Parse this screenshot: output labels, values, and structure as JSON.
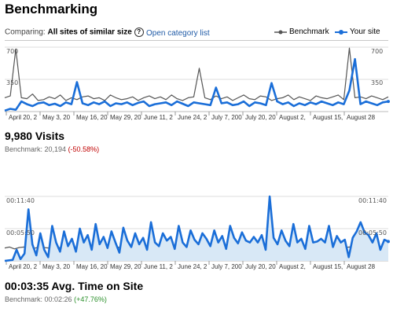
{
  "page": {
    "title": "Benchmarking",
    "comparing_label": "Comparing:",
    "comparing_value": "All sites of similar size",
    "help_icon": "?",
    "category_link": "Open category list",
    "legend": [
      {
        "label": "Benchmark",
        "color": "#555555"
      },
      {
        "label": "Your site",
        "color": "#1a6ed8"
      }
    ]
  },
  "visits": {
    "value_label": "9,980 Visits",
    "bench_label": "Benchmark: 20,194",
    "delta": "(-50.58%)"
  },
  "time": {
    "value_label": "00:03:35 Avg. Time on Site",
    "bench_label": "Benchmark: 00:02:26",
    "delta": "(+47.76%)"
  },
  "chart_data": [
    {
      "type": "line",
      "y_tick_labels": [
        "700",
        "350"
      ],
      "ylim": [
        0,
        700
      ],
      "x_tick_labels": [
        "April 20, 2",
        "May 3, 20",
        "May 16, 20",
        "May 29, 20",
        "June 11, 2",
        "June 24, 2",
        "July 7, 200",
        "July 20, 20",
        "August 2,",
        "August 15,",
        "August 28"
      ],
      "grid": true,
      "legend": "top-right",
      "series": [
        {
          "name": "Benchmark",
          "color": "#555555",
          "values": [
            150,
            170,
            680,
            150,
            140,
            190,
            120,
            130,
            160,
            140,
            180,
            120,
            150,
            130,
            160,
            170,
            140,
            150,
            120,
            180,
            150,
            130,
            140,
            160,
            120,
            150,
            170,
            140,
            160,
            130,
            180,
            140,
            120,
            150,
            160,
            470,
            150,
            130,
            170,
            140,
            160,
            120,
            150,
            180,
            140,
            130,
            170,
            160,
            120,
            140,
            150,
            180,
            130,
            160,
            140,
            120,
            170,
            150,
            140,
            160,
            180,
            130,
            690,
            150,
            160,
            140,
            170,
            150,
            130,
            160
          ]
        },
        {
          "name": "Your site",
          "color": "#1a6ed8",
          "values": [
            10,
            30,
            20,
            110,
            80,
            60,
            90,
            100,
            70,
            85,
            60,
            100,
            80,
            320,
            90,
            70,
            100,
            80,
            110,
            60,
            90,
            80,
            100,
            70,
            95,
            110,
            60,
            80,
            90,
            100,
            70,
            110,
            85,
            60,
            100,
            90,
            80,
            70,
            260,
            90,
            100,
            70,
            80,
            110,
            60,
            100,
            90,
            70,
            310,
            110,
            80,
            100,
            60,
            90,
            70,
            100,
            80,
            110,
            90,
            70,
            100,
            80,
            230,
            570,
            80,
            110,
            90,
            70,
            100,
            110
          ]
        }
      ]
    },
    {
      "type": "area",
      "y_tick_labels": [
        "00:11:40",
        "00:05:50"
      ],
      "ylim": [
        0,
        700
      ],
      "x_tick_labels": [
        "April 20, 2",
        "May 3, 20",
        "May 16, 20",
        "May 29, 20",
        "June 11, 2",
        "June 24, 2",
        "July 7, 200",
        "July 20, 20",
        "August 2,",
        "August 15,",
        "August 28"
      ],
      "grid": true,
      "series": [
        {
          "name": "Benchmark",
          "color": "#555555",
          "values": [
            140,
            150,
            130,
            145,
            150,
            140,
            135,
            150,
            145,
            140,
            150,
            145,
            140,
            150,
            145,
            140,
            135,
            150,
            145,
            140,
            150,
            145,
            140,
            150,
            145,
            140,
            150,
            140,
            145,
            150,
            140,
            145,
            150,
            140,
            145,
            150,
            140,
            145,
            150,
            140,
            145,
            150,
            140,
            145,
            150,
            140,
            145,
            150,
            140,
            145,
            150,
            140,
            145,
            150,
            140,
            145,
            150,
            140,
            145,
            150,
            140,
            145,
            150,
            140,
            145,
            150,
            140,
            145,
            150,
            140,
            145,
            150,
            140,
            145,
            150,
            140,
            145,
            150,
            140,
            145
          ]
        },
        {
          "name": "Your site",
          "color": "#1a6ed8",
          "values": [
            0,
            5,
            10,
            120,
            20,
            80,
            560,
            180,
            60,
            300,
            120,
            40,
            380,
            200,
            100,
            320,
            160,
            240,
            100,
            350,
            200,
            280,
            120,
            400,
            180,
            260,
            140,
            320,
            200,
            90,
            360,
            220,
            150,
            300,
            180,
            250,
            120,
            420,
            200,
            160,
            300,
            220,
            260,
            130,
            380,
            200,
            150,
            330,
            230,
            180,
            300,
            240,
            160,
            330,
            200,
            270,
            130,
            380,
            250,
            190,
            310,
            220,
            200,
            260,
            200,
            280,
            120,
            700,
            250,
            180,
            330,
            220,
            160,
            400,
            200,
            240,
            130,
            380,
            200,
            210,
            240,
            200,
            380,
            150,
            270,
            200,
            230,
            40,
            250,
            320,
            420,
            310,
            280,
            200,
            300,
            120,
            230,
            210
          ]
        }
      ]
    }
  ]
}
